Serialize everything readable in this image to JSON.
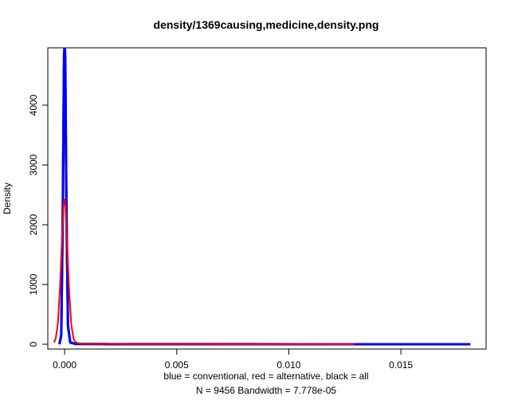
{
  "chart_data": {
    "type": "line",
    "title": "density/1369causing,medicine,density.png",
    "ylabel": "Density",
    "xlabel_line1": "blue = conventional, red = alternative, black = all",
    "xlabel_line2": "N = 9456   Bandwidth = 7.778e-05",
    "xlim": [
      -0.00075,
      0.0188
    ],
    "ylim": [
      -80,
      4960
    ],
    "x_ticks": [
      0.0,
      0.005,
      0.01,
      0.015
    ],
    "x_tick_labels": [
      "0.000",
      "0.005",
      "0.010",
      "0.015"
    ],
    "y_ticks": [
      0,
      1000,
      2000,
      3000,
      4000
    ],
    "y_tick_labels": [
      "0",
      "1000",
      "2000",
      "3000",
      "4000"
    ],
    "series": [
      {
        "name": "all",
        "color": "#000000",
        "points": [
          [
            -0.00023,
            0
          ],
          [
            -0.00015,
            150
          ],
          [
            -8e-05,
            2200
          ],
          [
            -3e-05,
            4600
          ],
          [
            0.0,
            4780
          ],
          [
            3e-05,
            4550
          ],
          [
            8e-05,
            2200
          ],
          [
            0.00015,
            300
          ],
          [
            0.00025,
            30
          ],
          [
            0.0005,
            5
          ],
          [
            0.002,
            2
          ],
          [
            0.008,
            1
          ],
          [
            0.0181,
            0
          ]
        ]
      },
      {
        "name": "conventional",
        "color": "#0000ff",
        "points": [
          [
            -0.00023,
            0
          ],
          [
            -0.00015,
            160
          ],
          [
            -8e-05,
            2400
          ],
          [
            -3e-05,
            4800
          ],
          [
            0.0,
            5050
          ],
          [
            3e-05,
            4800
          ],
          [
            8e-05,
            2400
          ],
          [
            0.00015,
            320
          ],
          [
            0.00025,
            30
          ],
          [
            0.0005,
            5
          ],
          [
            0.002,
            2
          ],
          [
            0.008,
            1
          ],
          [
            0.0181,
            0
          ]
        ]
      },
      {
        "name": "alternative",
        "color": "#ff0000",
        "points": [
          [
            -0.00048,
            30
          ],
          [
            -0.0004,
            90
          ],
          [
            -0.0003,
            350
          ],
          [
            -0.0002,
            1000
          ],
          [
            -0.0001,
            1900
          ],
          [
            -4e-05,
            2350
          ],
          [
            0.0,
            2420
          ],
          [
            4e-05,
            2300
          ],
          [
            0.0001,
            1800
          ],
          [
            0.0002,
            900
          ],
          [
            0.0003,
            320
          ],
          [
            0.0004,
            90
          ],
          [
            0.0005,
            30
          ],
          [
            0.0007,
            10
          ],
          [
            0.003,
            4
          ],
          [
            0.008,
            2
          ],
          [
            0.0129,
            0
          ]
        ]
      }
    ]
  }
}
